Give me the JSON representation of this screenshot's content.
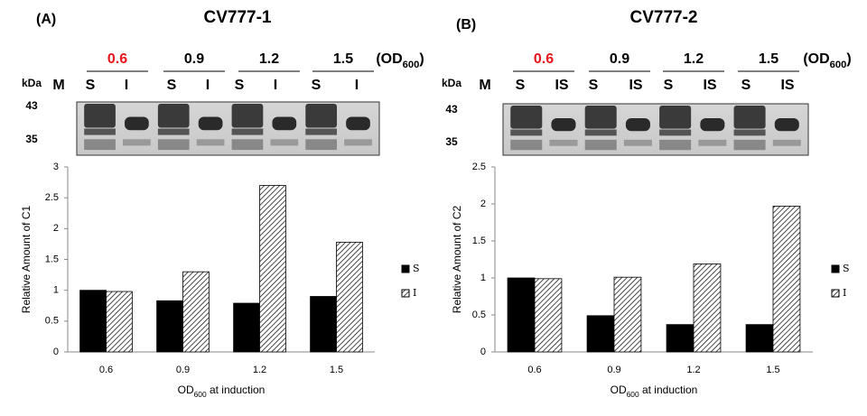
{
  "chart_data": [
    {
      "type": "bar",
      "panel_label": "(A)",
      "title": "CV777-1",
      "gel": {
        "od_values": [
          "0.6",
          "0.9",
          "1.2",
          "1.5"
        ],
        "od_colors": [
          "#e8141b",
          "#000000",
          "#000000",
          "#000000"
        ],
        "od_unit": [
          "(OD",
          "600",
          ")"
        ],
        "size_unit": "kDa",
        "lanes": [
          "M",
          "S",
          "I",
          "S",
          "I",
          "S",
          "I",
          "S",
          "I"
        ],
        "markers": [
          "43",
          "35"
        ]
      },
      "categories": [
        "0.6",
        "0.9",
        "1.2",
        "1.5"
      ],
      "series": [
        {
          "name": "S",
          "color": "#000000",
          "values": [
            1.0,
            0.83,
            0.79,
            0.9
          ]
        },
        {
          "name": "I",
          "color": "#000000",
          "hatch": true,
          "values": [
            0.98,
            1.3,
            2.7,
            1.78
          ]
        }
      ],
      "ylim": [
        0,
        3
      ],
      "yticks": [
        0,
        0.5,
        1,
        1.5,
        2,
        2.5,
        3
      ],
      "ylabel": "Relative Amount of  C1",
      "xlabel": [
        "OD",
        "600",
        " at induction"
      ]
    },
    {
      "type": "bar",
      "panel_label": "(B)",
      "title": "CV777-2",
      "gel": {
        "od_values": [
          "0.6",
          "0.9",
          "1.2",
          "1.5"
        ],
        "od_colors": [
          "#e8141b",
          "#000000",
          "#000000",
          "#000000"
        ],
        "od_unit": [
          "(OD",
          "600",
          ")"
        ],
        "size_unit": "kDa",
        "lanes": [
          "M",
          "S",
          "IS",
          "S",
          "IS",
          "S",
          "IS",
          "S",
          "IS"
        ],
        "markers": [
          "43",
          "35"
        ]
      },
      "categories": [
        "0.6",
        "0.9",
        "1.2",
        "1.5"
      ],
      "series": [
        {
          "name": "S",
          "color": "#000000",
          "values": [
            1.0,
            0.49,
            0.37,
            0.37
          ]
        },
        {
          "name": "I",
          "color": "#000000",
          "hatch": true,
          "values": [
            0.99,
            1.01,
            1.19,
            1.97
          ]
        }
      ],
      "ylim": [
        0,
        2.5
      ],
      "yticks": [
        0,
        0.5,
        1,
        1.5,
        2,
        2.5
      ],
      "ylabel": "Relative Amount of  C2",
      "xlabel": [
        "OD",
        "600",
        " at induction"
      ]
    }
  ]
}
